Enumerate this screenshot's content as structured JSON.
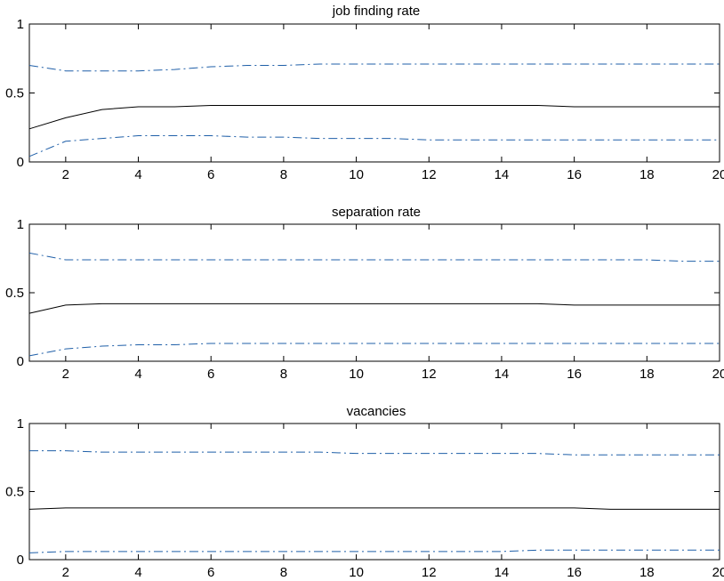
{
  "chart_data": [
    {
      "type": "line",
      "title": "job finding rate",
      "xlabel": "",
      "ylabel": "",
      "xlim": [
        1,
        20
      ],
      "ylim": [
        0,
        1
      ],
      "xticks": [
        2,
        4,
        6,
        8,
        10,
        12,
        14,
        16,
        18,
        20
      ],
      "yticks": [
        0,
        0.5,
        1
      ],
      "grid": false,
      "x": [
        1,
        2,
        3,
        4,
        5,
        6,
        7,
        8,
        9,
        10,
        11,
        12,
        13,
        14,
        15,
        16,
        17,
        18,
        19,
        20
      ],
      "series": [
        {
          "values": [
            0.24,
            0.32,
            0.38,
            0.4,
            0.4,
            0.41,
            0.41,
            0.41,
            0.41,
            0.41,
            0.41,
            0.41,
            0.41,
            0.41,
            0.41,
            0.4,
            0.4,
            0.4,
            0.4,
            0.4
          ],
          "color": "#000000",
          "style": "solid"
        },
        {
          "values": [
            0.7,
            0.66,
            0.66,
            0.66,
            0.67,
            0.69,
            0.7,
            0.7,
            0.71,
            0.71,
            0.71,
            0.71,
            0.71,
            0.71,
            0.71,
            0.71,
            0.71,
            0.71,
            0.71,
            0.71
          ],
          "color": "#1f5fa8",
          "style": "dashdot"
        },
        {
          "values": [
            0.04,
            0.15,
            0.17,
            0.19,
            0.19,
            0.19,
            0.18,
            0.18,
            0.17,
            0.17,
            0.17,
            0.16,
            0.16,
            0.16,
            0.16,
            0.16,
            0.16,
            0.16,
            0.16,
            0.16
          ],
          "color": "#1f5fa8",
          "style": "dashdot"
        }
      ]
    },
    {
      "type": "line",
      "title": "separation rate",
      "xlabel": "",
      "ylabel": "",
      "xlim": [
        1,
        20
      ],
      "ylim": [
        0,
        1
      ],
      "xticks": [
        2,
        4,
        6,
        8,
        10,
        12,
        14,
        16,
        18,
        20
      ],
      "yticks": [
        0,
        0.5,
        1
      ],
      "grid": false,
      "x": [
        1,
        2,
        3,
        4,
        5,
        6,
        7,
        8,
        9,
        10,
        11,
        12,
        13,
        14,
        15,
        16,
        17,
        18,
        19,
        20
      ],
      "series": [
        {
          "values": [
            0.35,
            0.41,
            0.42,
            0.42,
            0.42,
            0.42,
            0.42,
            0.42,
            0.42,
            0.42,
            0.42,
            0.42,
            0.42,
            0.42,
            0.42,
            0.41,
            0.41,
            0.41,
            0.41,
            0.41
          ],
          "color": "#000000",
          "style": "solid"
        },
        {
          "values": [
            0.79,
            0.74,
            0.74,
            0.74,
            0.74,
            0.74,
            0.74,
            0.74,
            0.74,
            0.74,
            0.74,
            0.74,
            0.74,
            0.74,
            0.74,
            0.74,
            0.74,
            0.74,
            0.73,
            0.73
          ],
          "color": "#1f5fa8",
          "style": "dashdot"
        },
        {
          "values": [
            0.04,
            0.09,
            0.11,
            0.12,
            0.12,
            0.13,
            0.13,
            0.13,
            0.13,
            0.13,
            0.13,
            0.13,
            0.13,
            0.13,
            0.13,
            0.13,
            0.13,
            0.13,
            0.13,
            0.13
          ],
          "color": "#1f5fa8",
          "style": "dashdot"
        }
      ]
    },
    {
      "type": "line",
      "title": "vacancies",
      "xlabel": "",
      "ylabel": "",
      "xlim": [
        1,
        20
      ],
      "ylim": [
        0,
        1
      ],
      "xticks": [
        2,
        4,
        6,
        8,
        10,
        12,
        14,
        16,
        18,
        20
      ],
      "yticks": [
        0,
        0.5,
        1
      ],
      "grid": false,
      "x": [
        1,
        2,
        3,
        4,
        5,
        6,
        7,
        8,
        9,
        10,
        11,
        12,
        13,
        14,
        15,
        16,
        17,
        18,
        19,
        20
      ],
      "series": [
        {
          "values": [
            0.37,
            0.38,
            0.38,
            0.38,
            0.38,
            0.38,
            0.38,
            0.38,
            0.38,
            0.38,
            0.38,
            0.38,
            0.38,
            0.38,
            0.38,
            0.38,
            0.37,
            0.37,
            0.37,
            0.37
          ],
          "color": "#000000",
          "style": "solid"
        },
        {
          "values": [
            0.8,
            0.8,
            0.79,
            0.79,
            0.79,
            0.79,
            0.79,
            0.79,
            0.79,
            0.78,
            0.78,
            0.78,
            0.78,
            0.78,
            0.78,
            0.77,
            0.77,
            0.77,
            0.77,
            0.77
          ],
          "color": "#1f5fa8",
          "style": "dashdot"
        },
        {
          "values": [
            0.05,
            0.06,
            0.06,
            0.06,
            0.06,
            0.06,
            0.06,
            0.06,
            0.06,
            0.06,
            0.06,
            0.06,
            0.06,
            0.06,
            0.07,
            0.07,
            0.07,
            0.07,
            0.07,
            0.07
          ],
          "color": "#1f5fa8",
          "style": "dashdot"
        }
      ]
    }
  ]
}
